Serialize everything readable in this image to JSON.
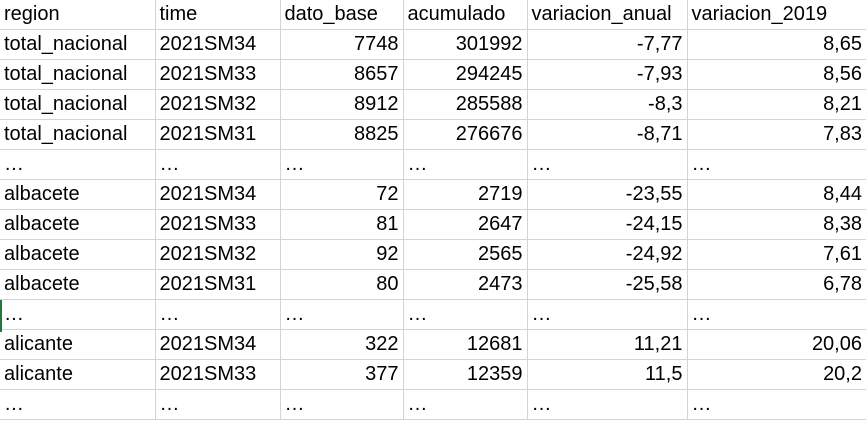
{
  "headers": [
    "region",
    "time",
    "dato_base",
    "acumulado",
    "variacion_anual",
    "variacion_2019"
  ],
  "rows": [
    [
      "total_nacional",
      "2021SM34",
      "7748",
      "301992",
      "-7,77",
      "8,65"
    ],
    [
      "total_nacional",
      "2021SM33",
      "8657",
      "294245",
      "-7,93",
      "8,56"
    ],
    [
      "total_nacional",
      "2021SM32",
      "8912",
      "285588",
      "-8,3",
      "8,21"
    ],
    [
      "total_nacional",
      "2021SM31",
      "8825",
      "276676",
      "-8,71",
      "7,83"
    ],
    [
      "…",
      "…",
      "…",
      "…",
      "…",
      "…"
    ],
    [
      "albacete",
      "2021SM34",
      "72",
      "2719",
      "-23,55",
      "8,44"
    ],
    [
      "albacete",
      "2021SM33",
      "81",
      "2647",
      "-24,15",
      "8,38"
    ],
    [
      "albacete",
      "2021SM32",
      "92",
      "2565",
      "-24,92",
      "7,61"
    ],
    [
      "albacete",
      "2021SM31",
      "80",
      "2473",
      "-25,58",
      "6,78"
    ],
    [
      "…",
      "…",
      "…",
      "…",
      "…",
      "…"
    ],
    [
      "alicante",
      "2021SM34",
      "322",
      "12681",
      "11,21",
      "20,06"
    ],
    [
      "alicante",
      "2021SM33",
      "377",
      "12359",
      "11,5",
      "20,2"
    ],
    [
      "…",
      "…",
      "…",
      "…",
      "…",
      "…"
    ]
  ]
}
